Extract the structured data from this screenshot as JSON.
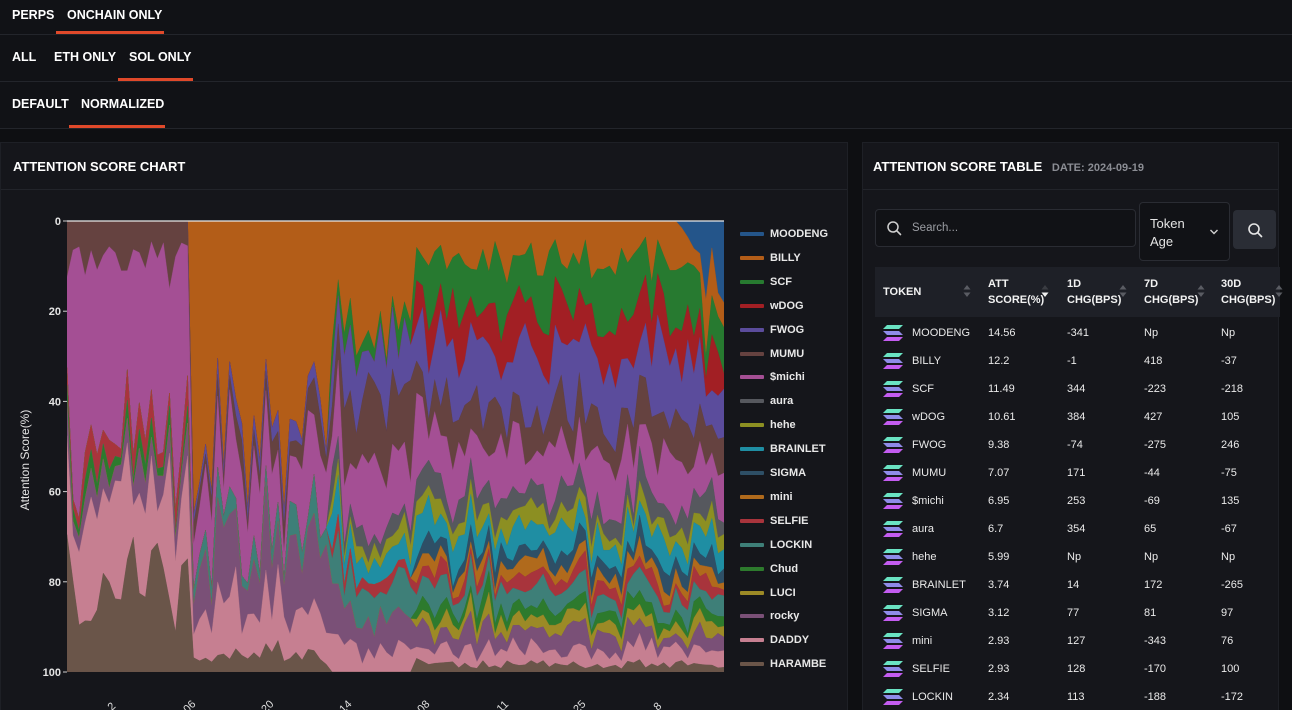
{
  "tabs_row1": [
    {
      "label": "PERPS",
      "active": false
    },
    {
      "label": "ONCHAIN ONLY",
      "active": true
    }
  ],
  "tabs_row2": [
    {
      "label": "ALL",
      "active": false
    },
    {
      "label": "ETH ONLY",
      "active": false
    },
    {
      "label": "SOL ONLY",
      "active": true
    }
  ],
  "tabs_row3": [
    {
      "label": "DEFAULT",
      "active": false
    },
    {
      "label": "NORMALIZED",
      "active": true
    }
  ],
  "chart": {
    "title": "ATTENTION SCORE CHART",
    "ylabel": "Attention Score(%)",
    "yticks": [
      "0",
      "20",
      "40",
      "60",
      "80",
      "100"
    ],
    "xticks": [
      "2",
      "06",
      "20",
      "14",
      "08",
      "11",
      "25",
      "8"
    ]
  },
  "chart_data": {
    "type": "area",
    "stacked": true,
    "normalized": true,
    "ylabel": "Attention Score(%)",
    "ylim": [
      0,
      100
    ],
    "y_inverted": true,
    "legend_position": "right",
    "series": [
      {
        "name": "MOODENG",
        "color": "#24558a"
      },
      {
        "name": "BILLY",
        "color": "#b35d18"
      },
      {
        "name": "SCF",
        "color": "#277a30"
      },
      {
        "name": "wDOG",
        "color": "#a21f24"
      },
      {
        "name": "FWOG",
        "color": "#5b4c9c"
      },
      {
        "name": "MUMU",
        "color": "#654240"
      },
      {
        "name": "$michi",
        "color": "#a44f94"
      },
      {
        "name": "aura",
        "color": "#56585e"
      },
      {
        "name": "hehe",
        "color": "#8c8f22"
      },
      {
        "name": "BRAINLET",
        "color": "#1f8ea3"
      },
      {
        "name": "SIGMA",
        "color": "#2e4f66"
      },
      {
        "name": "mini",
        "color": "#b06a1c"
      },
      {
        "name": "SELFIE",
        "color": "#a8343c"
      },
      {
        "name": "LOCKIN",
        "color": "#3e7f78"
      },
      {
        "name": "Chud",
        "color": "#2d7a2d"
      },
      {
        "name": "LUCI",
        "color": "#9c8a26"
      },
      {
        "name": "rocky",
        "color": "#7a5077"
      },
      {
        "name": "DADDY",
        "color": "#c67f91"
      },
      {
        "name": "HARAMBE",
        "color": "#6a5549"
      }
    ]
  },
  "table": {
    "title": "ATTENTION SCORE TABLE",
    "date": "DATE: 2024-09-19",
    "search_placeholder": "Search...",
    "age_select": "Token Age",
    "columns": [
      "TOKEN",
      "ATT SCORE(%)",
      "1D CHG(BPS)",
      "7D CHG(BPS)",
      "30D CHG(BPS)"
    ],
    "rows": [
      [
        "MOODENG",
        "14.56",
        "-341",
        "Np",
        "Np"
      ],
      [
        "BILLY",
        "12.2",
        "-1",
        "418",
        "-37"
      ],
      [
        "SCF",
        "11.49",
        "344",
        "-223",
        "-218"
      ],
      [
        "wDOG",
        "10.61",
        "384",
        "427",
        "105"
      ],
      [
        "FWOG",
        "9.38",
        "-74",
        "-275",
        "246"
      ],
      [
        "MUMU",
        "7.07",
        "171",
        "-44",
        "-75"
      ],
      [
        "$michi",
        "6.95",
        "253",
        "-69",
        "135"
      ],
      [
        "aura",
        "6.7",
        "354",
        "65",
        "-67"
      ],
      [
        "hehe",
        "5.99",
        "Np",
        "Np",
        "Np"
      ],
      [
        "BRAINLET",
        "3.74",
        "14",
        "172",
        "-265"
      ],
      [
        "SIGMA",
        "3.12",
        "77",
        "81",
        "97"
      ],
      [
        "mini",
        "2.93",
        "127",
        "-343",
        "76"
      ],
      [
        "SELFIE",
        "2.93",
        "128",
        "-170",
        "100"
      ],
      [
        "LOCKIN",
        "2.34",
        "113",
        "-188",
        "-172"
      ]
    ]
  }
}
